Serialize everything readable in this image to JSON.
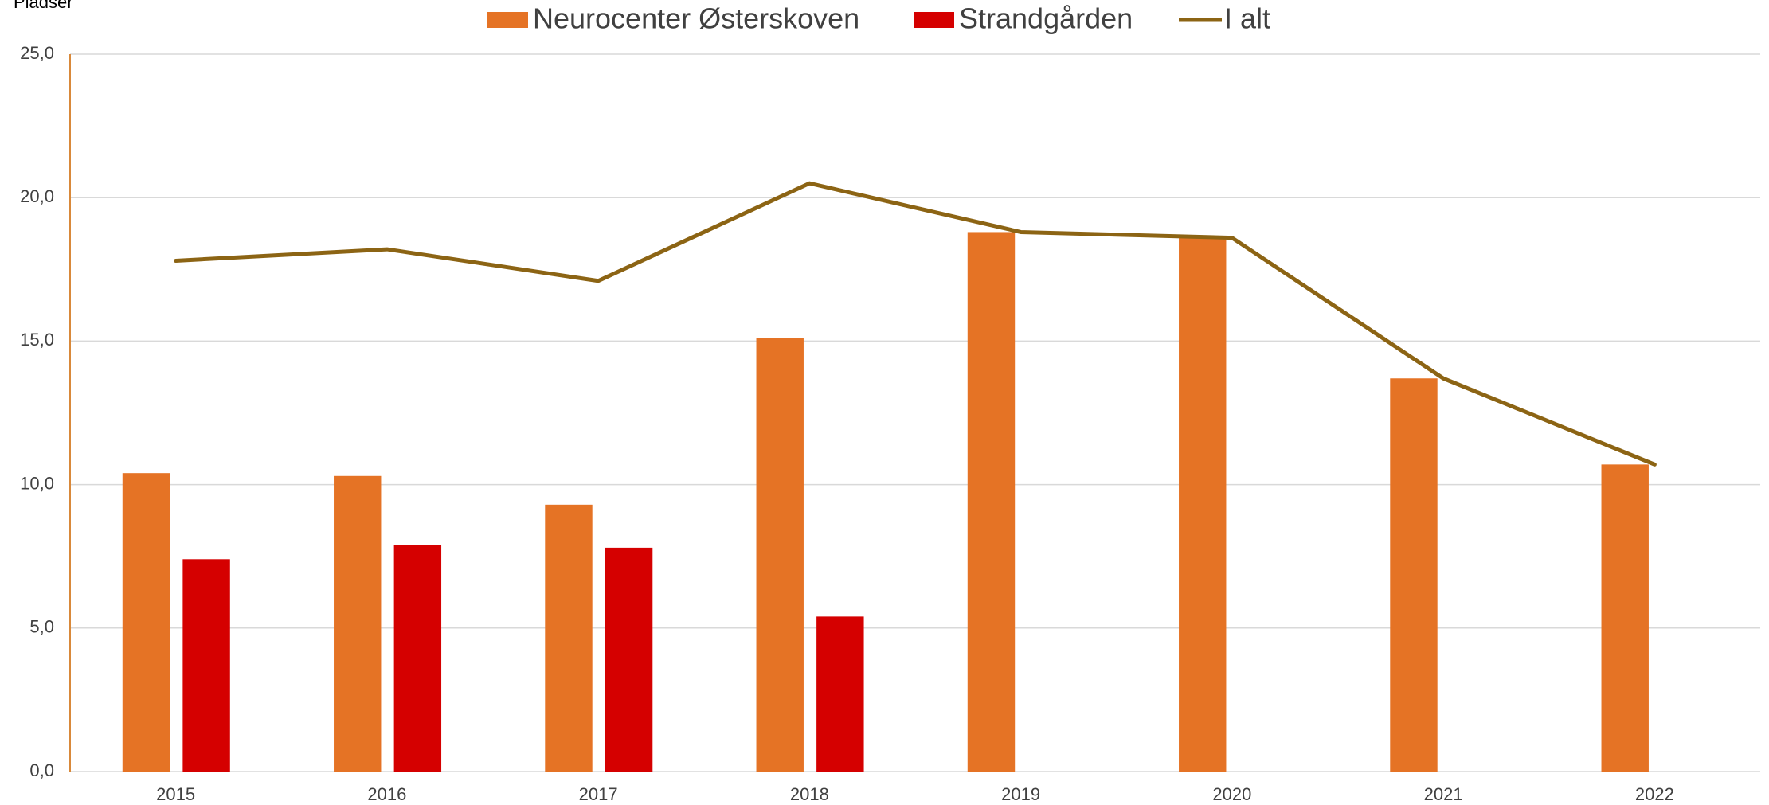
{
  "chart_data": {
    "type": "bar+line",
    "y_label": "Pladser",
    "categories": [
      "2015",
      "2016",
      "2017",
      "2018",
      "2019",
      "2020",
      "2021",
      "2022"
    ],
    "series": [
      {
        "name": "Neurocenter Østerskoven",
        "type": "bar",
        "color": "#e57325",
        "values": [
          10.4,
          10.3,
          9.3,
          15.1,
          18.8,
          18.6,
          13.7,
          10.7
        ]
      },
      {
        "name": "Strandgården",
        "type": "bar",
        "color": "#d50000",
        "values": [
          7.4,
          7.9,
          7.8,
          5.4,
          null,
          null,
          null,
          null
        ]
      },
      {
        "name": "I alt",
        "type": "line",
        "color": "#8c6414",
        "values": [
          17.8,
          18.2,
          17.1,
          20.5,
          18.8,
          18.6,
          13.7,
          10.7
        ]
      }
    ],
    "ylim": [
      0,
      25
    ],
    "yticks": [
      {
        "value": 0,
        "label": "0,0"
      },
      {
        "value": 5,
        "label": "5,0"
      },
      {
        "value": 10,
        "label": "10,0"
      },
      {
        "value": 15,
        "label": "15,0"
      },
      {
        "value": 20,
        "label": "20,0"
      },
      {
        "value": 25,
        "label": "25,0"
      }
    ],
    "grid": true,
    "legend": "top"
  }
}
